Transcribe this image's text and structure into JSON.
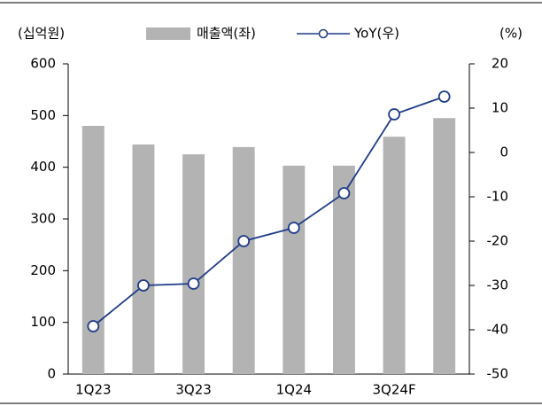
{
  "chart_data": {
    "type": "bar-line",
    "y_label": "(십억원)",
    "y2_label": "(%)",
    "categories": [
      "1Q23",
      null,
      "3Q23",
      null,
      "1Q24",
      null,
      "3Q24F",
      null
    ],
    "series": [
      {
        "name": "매출액(좌)",
        "type": "bar",
        "color": "#b3b3b3",
        "values": [
          480,
          444,
          425,
          439,
          403,
          403,
          459,
          495
        ]
      },
      {
        "name": "YoY(우)",
        "type": "line",
        "axis": "y2",
        "color": "#1f3c88",
        "values": [
          -39.2,
          -30,
          -29.6,
          -20,
          -17,
          -9.2,
          8.6,
          12.6
        ]
      }
    ],
    "ylim": [
      0,
      600
    ],
    "yticks": [
      0,
      100,
      200,
      300,
      400,
      500,
      600
    ],
    "y2lim": [
      -50,
      20
    ],
    "y2ticks": [
      -50,
      -40,
      -30,
      -20,
      -10,
      0,
      10,
      20
    ],
    "grid": false,
    "legend": "top"
  }
}
